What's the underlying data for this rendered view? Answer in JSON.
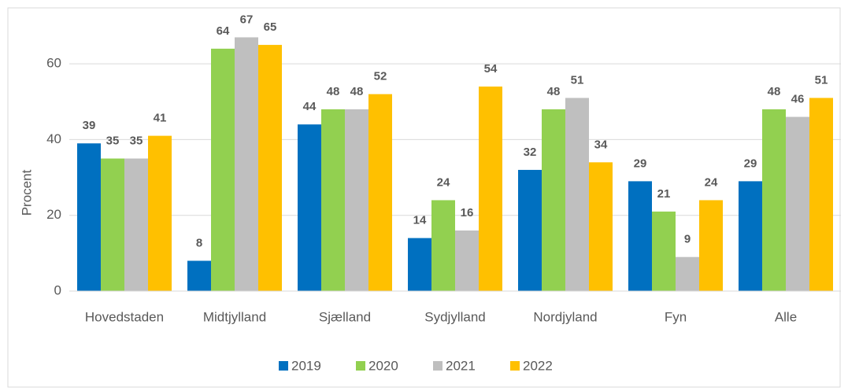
{
  "chart_data": {
    "type": "bar",
    "y_label": "Procent",
    "categories": [
      "Hovedstaden",
      "Midtjylland",
      "Sjælland",
      "Sydjylland",
      "Nordjyland",
      "Fyn",
      "Alle"
    ],
    "series": [
      {
        "name": "2019",
        "color": "#0070c0",
        "values": [
          39,
          8,
          44,
          14,
          32,
          29,
          29
        ]
      },
      {
        "name": "2020",
        "color": "#92d050",
        "values": [
          35,
          64,
          48,
          24,
          48,
          21,
          48
        ]
      },
      {
        "name": "2021",
        "color": "#bfbfbf",
        "values": [
          35,
          67,
          48,
          16,
          51,
          9,
          46
        ]
      },
      {
        "name": "2022",
        "color": "#ffc000",
        "values": [
          41,
          65,
          52,
          54,
          34,
          24,
          51
        ]
      }
    ],
    "ylim": [
      0,
      70
    ],
    "yticks": [
      0,
      20,
      40,
      60
    ],
    "grid": true,
    "legend": "bottom"
  }
}
